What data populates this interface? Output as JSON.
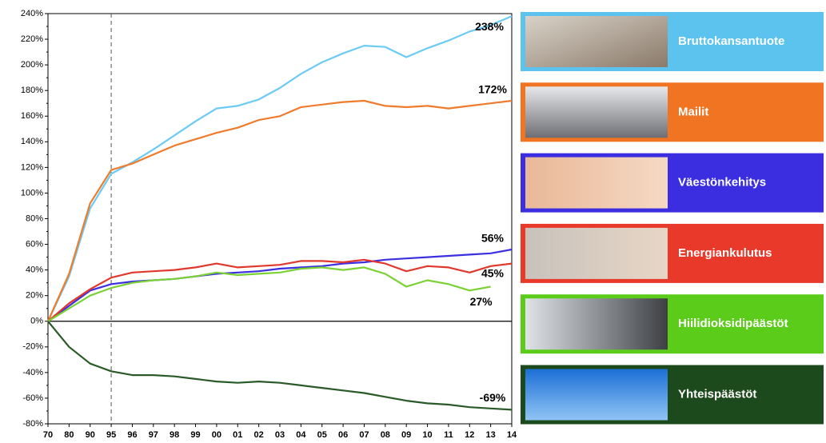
{
  "chart_data": {
    "type": "line",
    "categories": [
      "70",
      "80",
      "90",
      "95",
      "96",
      "97",
      "98",
      "99",
      "00",
      "01",
      "02",
      "03",
      "04",
      "05",
      "06",
      "07",
      "08",
      "09",
      "10",
      "11",
      "12",
      "13",
      "14"
    ],
    "ylim": [
      -80,
      240
    ],
    "yticks": [
      {
        "value": -80,
        "label": "-80%"
      },
      {
        "value": -60,
        "label": "-60%"
      },
      {
        "value": -40,
        "label": "-40%"
      },
      {
        "value": -20,
        "label": "-20%"
      },
      {
        "value": 0,
        "label": "0%"
      },
      {
        "value": 20,
        "label": "20%"
      },
      {
        "value": 40,
        "label": "40%"
      },
      {
        "value": 60,
        "label": "60%"
      },
      {
        "value": 80,
        "label": "80%"
      },
      {
        "value": 100,
        "label": "100%"
      },
      {
        "value": 120,
        "label": "120%"
      },
      {
        "value": 140,
        "label": "140%"
      },
      {
        "value": 160,
        "label": "160%"
      },
      {
        "value": 180,
        "label": "180%"
      },
      {
        "value": 200,
        "label": "200%"
      },
      {
        "value": 220,
        "label": "220%"
      },
      {
        "value": 240,
        "label": "240%"
      }
    ],
    "reference_line": "95",
    "series": [
      {
        "name": "Bruttokansantuote",
        "color": "#6ccbf3",
        "panel_color": "#5bc3ee",
        "end_label": "238%",
        "values": [
          0,
          35,
          88,
          115,
          124,
          134,
          145,
          156,
          166,
          168,
          173,
          182,
          193,
          202,
          209,
          215,
          214,
          206,
          213,
          219,
          226,
          231,
          238
        ]
      },
      {
        "name": "Mailit",
        "color": "#ef7b2c",
        "panel_color": "#f07422",
        "end_label": "172%",
        "values": [
          0,
          37,
          92,
          118,
          123,
          130,
          137,
          142,
          147,
          151,
          157,
          160,
          167,
          169,
          171,
          172,
          168,
          167,
          168,
          166,
          168,
          170,
          172
        ]
      },
      {
        "name": "Väestönkehitys",
        "color": "#3b2fe0",
        "panel_color": "#3a2ee0",
        "end_label": "56%",
        "values": [
          0,
          12,
          24,
          29,
          31,
          32,
          33,
          35,
          37,
          38,
          39,
          41,
          42,
          43,
          45,
          46,
          48,
          49,
          50,
          51,
          52,
          53,
          56
        ]
      },
      {
        "name": "Energiankulutus",
        "color": "#e2382c",
        "panel_color": "#e8392a",
        "end_label": "45%",
        "values": [
          0,
          14,
          25,
          34,
          38,
          39,
          40,
          42,
          45,
          42,
          43,
          44,
          47,
          47,
          46,
          48,
          45,
          39,
          43,
          42,
          38,
          43,
          45
        ]
      },
      {
        "name": "Hiilidioksidipäästöt",
        "color": "#7bd234",
        "panel_color": "#5ccc1a",
        "end_label": "27%",
        "values": [
          0,
          10,
          20,
          26,
          30,
          32,
          33,
          35,
          38,
          36,
          37,
          38,
          41,
          42,
          40,
          42,
          37,
          27,
          32,
          29,
          24,
          27,
          null
        ]
      },
      {
        "name": "Yhteispäästöt",
        "color": "#2a5a28",
        "panel_color": "#1c4a1c",
        "end_label": "-69%",
        "values": [
          0,
          -20,
          -33,
          -39,
          -42,
          -42,
          -43,
          -45,
          -47,
          -48,
          -47,
          -48,
          -50,
          -52,
          -54,
          -56,
          -59,
          -62,
          -64,
          -65,
          -67,
          -68,
          -69
        ]
      }
    ]
  }
}
